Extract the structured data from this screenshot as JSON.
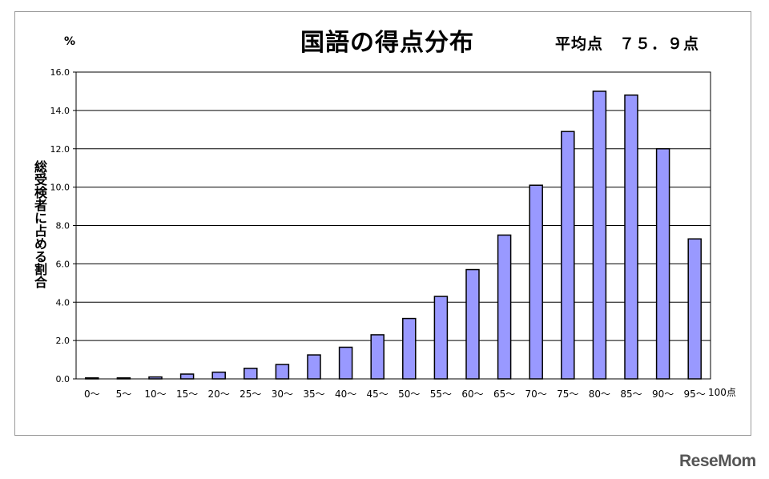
{
  "header": {
    "title": "国語の得点分布",
    "average_text": "平均点　７５．９点",
    "unit": "%",
    "ylabel": "総受検者に占める割合",
    "logo": "ReseMom"
  },
  "chart_data": {
    "type": "bar",
    "title": "国語の得点分布",
    "ylabel": "総受検者に占める割合",
    "unit": "%",
    "categories": [
      "0～",
      "5～",
      "10～",
      "15～",
      "20～",
      "25～",
      "30～",
      "35～",
      "40～",
      "45～",
      "50～",
      "55～",
      "60～",
      "65～",
      "70～",
      "75～",
      "80～",
      "85～",
      "90～",
      "95～"
    ],
    "axis_end_label": "100点",
    "values": [
      0.05,
      0.05,
      0.1,
      0.25,
      0.35,
      0.55,
      0.75,
      1.25,
      1.65,
      2.3,
      3.15,
      4.3,
      5.7,
      7.5,
      10.1,
      12.9,
      15.0,
      14.8,
      12.0,
      7.3
    ],
    "ylim": [
      0,
      16
    ],
    "yticks": [
      "0.0",
      "2.0",
      "4.0",
      "6.0",
      "8.0",
      "10.0",
      "12.0",
      "14.0",
      "16.0"
    ],
    "grid": true,
    "bar_color": "#9999ff"
  }
}
